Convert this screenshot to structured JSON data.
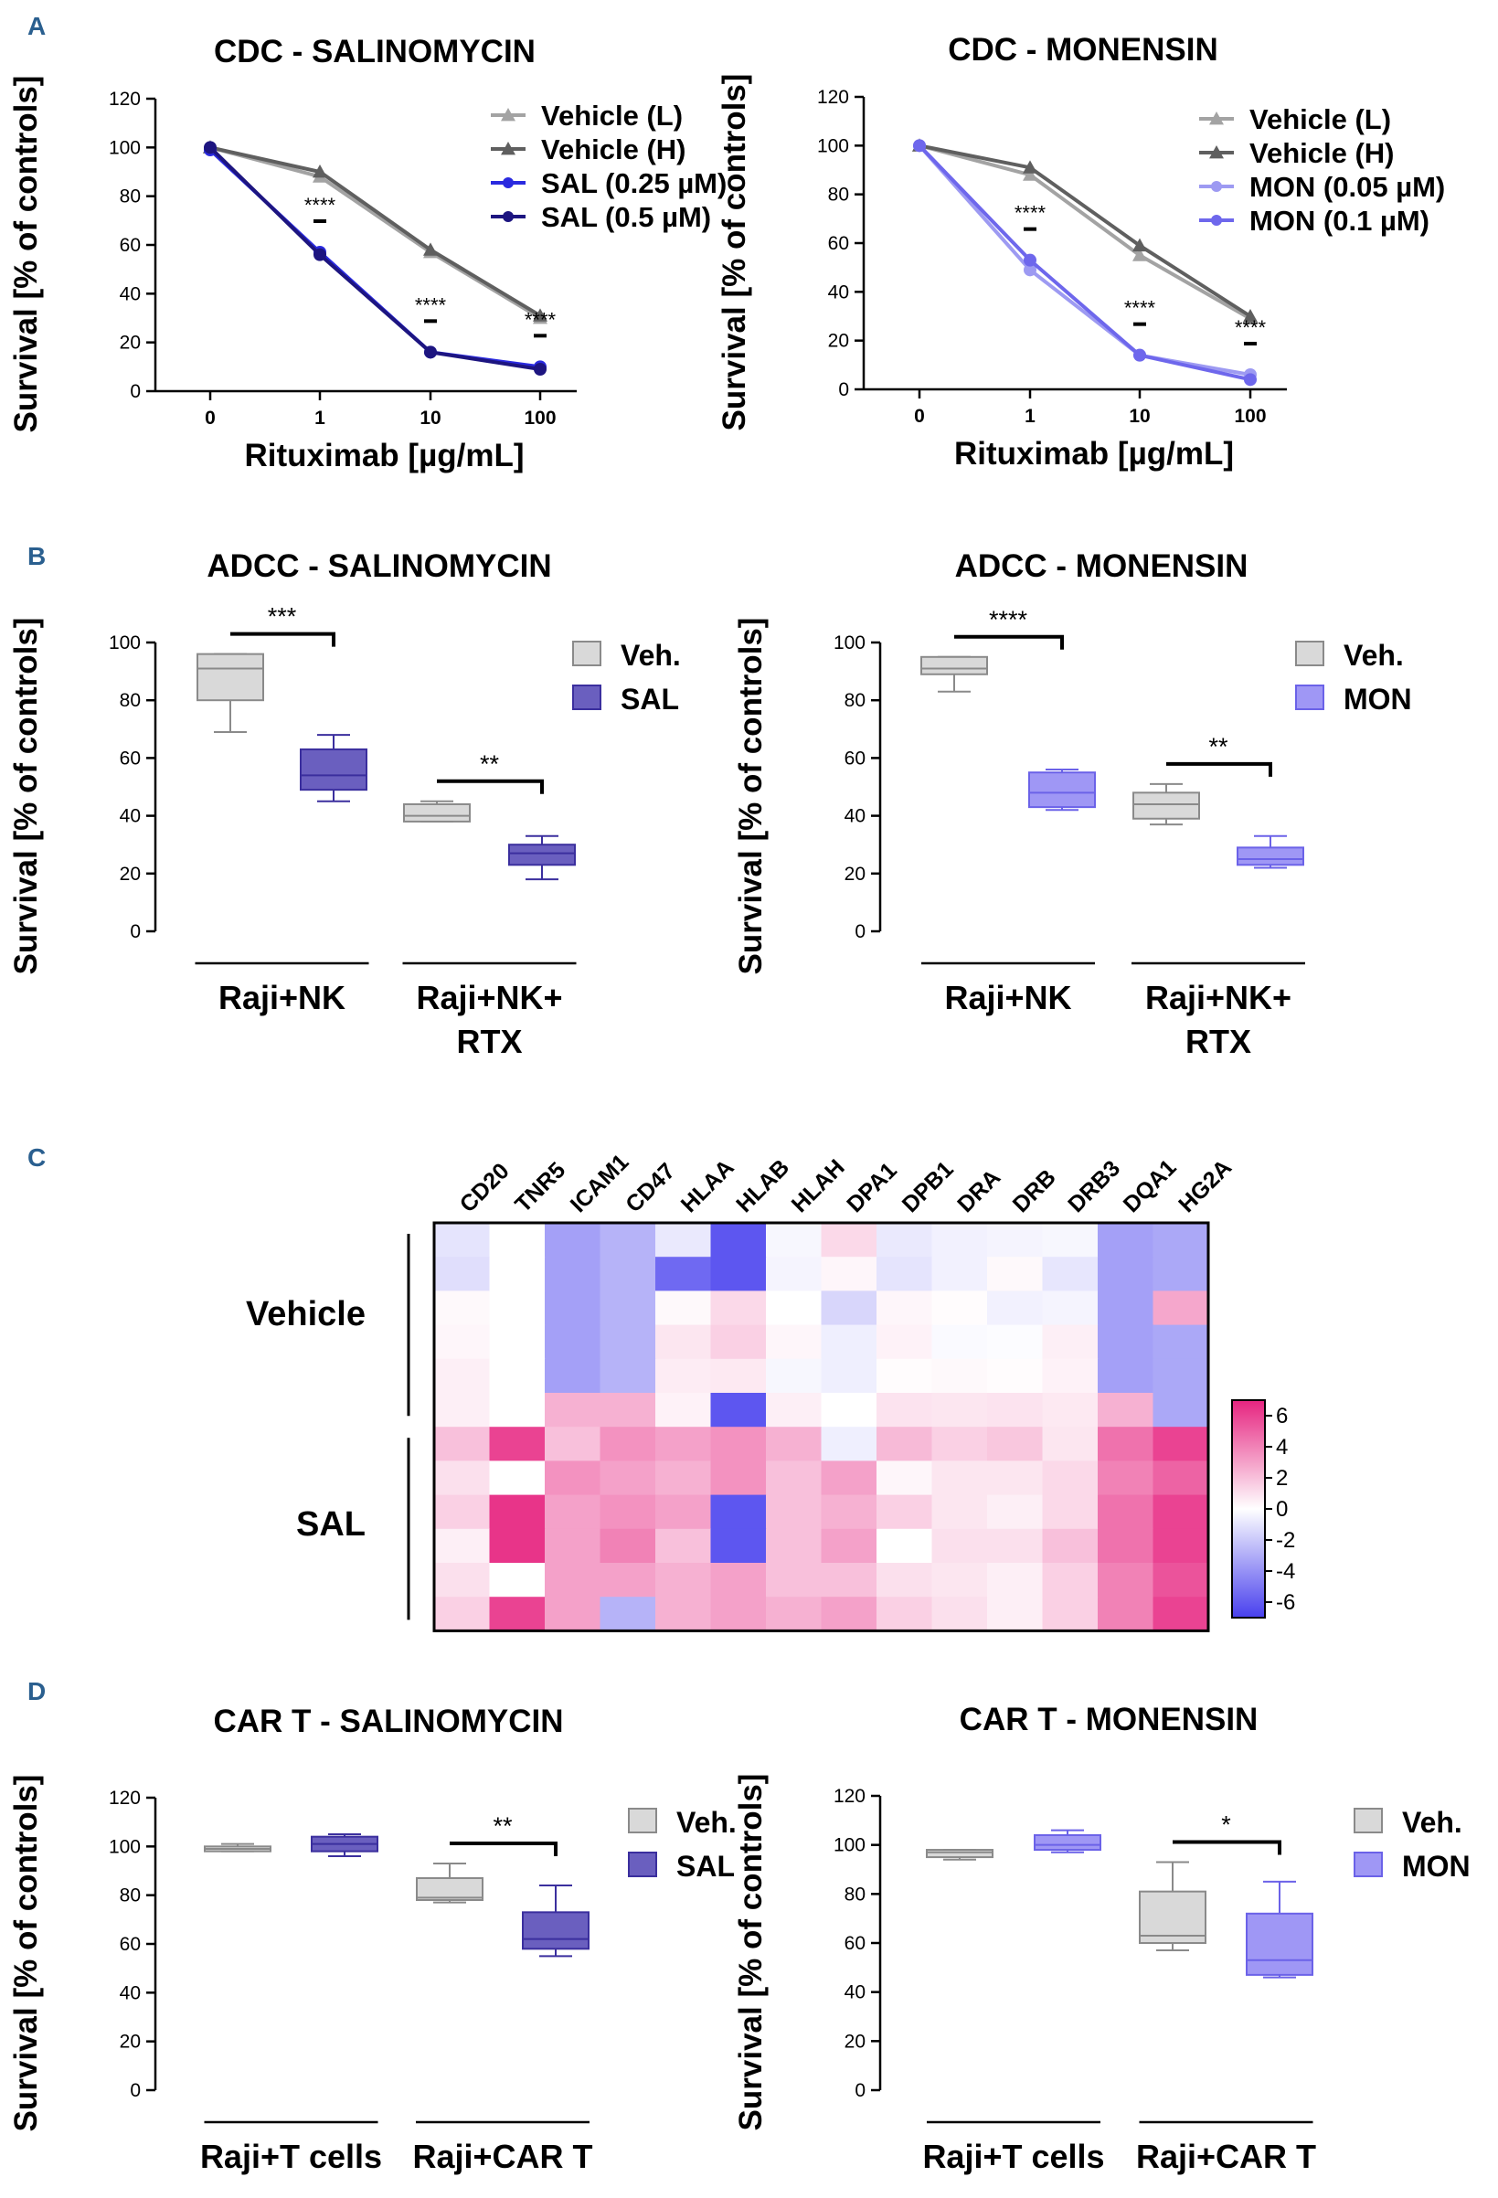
{
  "colors": {
    "veh_light": "#a3a3a3",
    "veh_dark": "#5f5f5f",
    "sal_light": "#2a2adf",
    "sal_dark": "#1d1580",
    "mon_light": "#9d9af2",
    "mon_dark": "#6e67ec",
    "box_veh": "#d9d9d9",
    "box_sal": "#6a5fbf",
    "box_mon": "#9f97f5"
  },
  "panel_labels": [
    "A",
    "B",
    "C",
    "D"
  ],
  "chart_data": [
    {
      "type": "line",
      "panel": "A",
      "title": "CDC - SALINOMYCIN",
      "xlabel": "Rituximab [µg/mL]",
      "ylabel": "Survival [% of controls]",
      "categories": [
        "0",
        "1",
        "10",
        "100"
      ],
      "ylim": [
        0,
        120
      ],
      "yticks": [
        "0",
        "20",
        "40",
        "60",
        "80",
        "100",
        "120"
      ],
      "series": [
        {
          "name": "Vehicle (L)",
          "values": [
            100,
            88,
            57,
            30
          ],
          "marker": "triangle",
          "color_key": "veh_light"
        },
        {
          "name": "Vehicle (H)",
          "values": [
            100,
            90,
            58,
            31
          ],
          "marker": "triangle",
          "color_key": "veh_dark"
        },
        {
          "name": "SAL (0.25 µM)",
          "values": [
            99,
            57,
            16,
            10
          ],
          "marker": "circle",
          "color_key": "sal_light"
        },
        {
          "name": "SAL (0.5 µM)",
          "values": [
            100,
            56,
            16,
            9
          ],
          "marker": "circle",
          "color_key": "sal_dark"
        }
      ],
      "annotations": [
        "****",
        "****",
        "****"
      ]
    },
    {
      "type": "line",
      "panel": "A",
      "title": "CDC - MONENSIN",
      "xlabel": "Rituximab [µg/mL]",
      "ylabel": "Survival [% of controls]",
      "categories": [
        "0",
        "1",
        "10",
        "100"
      ],
      "ylim": [
        0,
        120
      ],
      "yticks": [
        "0",
        "20",
        "40",
        "60",
        "80",
        "100",
        "120"
      ],
      "series": [
        {
          "name": "Vehicle (L)",
          "values": [
            100,
            88,
            55,
            29
          ],
          "marker": "triangle",
          "color_key": "veh_light"
        },
        {
          "name": "Vehicle (H)",
          "values": [
            100,
            91,
            59,
            30
          ],
          "marker": "triangle",
          "color_key": "veh_dark"
        },
        {
          "name": "MON (0.05 µM)",
          "values": [
            100,
            49,
            14,
            6
          ],
          "marker": "circle",
          "color_key": "mon_light"
        },
        {
          "name": "MON (0.1 µM)",
          "values": [
            100,
            53,
            14,
            4
          ],
          "marker": "circle",
          "color_key": "mon_dark"
        }
      ],
      "annotations": [
        "****",
        "****",
        "****"
      ]
    },
    {
      "type": "box",
      "panel": "B",
      "title": "ADCC - SALINOMYCIN",
      "ylabel": "Survival [% of controls]",
      "ylim": [
        0,
        100
      ],
      "yticks": [
        "0",
        "20",
        "40",
        "60",
        "80",
        "100"
      ],
      "groups": [
        "Raji+NK",
        "Raji+NK+ RTX"
      ],
      "legend": [
        "Veh.",
        "SAL"
      ],
      "boxes": [
        {
          "group": 0,
          "name": "Veh.",
          "min": 69,
          "q1": 80,
          "median": 91,
          "q3": 96,
          "max": 96
        },
        {
          "group": 0,
          "name": "SAL",
          "min": 45,
          "q1": 49,
          "median": 54,
          "q3": 63,
          "max": 68
        },
        {
          "group": 1,
          "name": "Veh.",
          "min": 38,
          "q1": 38,
          "median": 40,
          "q3": 44,
          "max": 45
        },
        {
          "group": 1,
          "name": "SAL",
          "min": 18,
          "q1": 23,
          "median": 27,
          "q3": 30,
          "max": 33
        }
      ],
      "significance": [
        {
          "group": 0,
          "label": "***"
        },
        {
          "group": 1,
          "label": "**"
        }
      ]
    },
    {
      "type": "box",
      "panel": "B",
      "title": "ADCC - MONENSIN",
      "ylabel": "Survival [% of controls]",
      "ylim": [
        0,
        100
      ],
      "yticks": [
        "0",
        "20",
        "40",
        "60",
        "80",
        "100"
      ],
      "groups": [
        "Raji+NK",
        "Raji+NK+ RTX"
      ],
      "legend": [
        "Veh.",
        "MON"
      ],
      "boxes": [
        {
          "group": 0,
          "name": "Veh.",
          "min": 83,
          "q1": 89,
          "median": 91,
          "q3": 95,
          "max": 95
        },
        {
          "group": 0,
          "name": "MON",
          "min": 42,
          "q1": 43,
          "median": 48,
          "q3": 55,
          "max": 56
        },
        {
          "group": 1,
          "name": "Veh.",
          "min": 37,
          "q1": 39,
          "median": 44,
          "q3": 48,
          "max": 51
        },
        {
          "group": 1,
          "name": "MON",
          "min": 22,
          "q1": 23,
          "median": 25,
          "q3": 29,
          "max": 33
        }
      ],
      "significance": [
        {
          "group": 0,
          "label": "****"
        },
        {
          "group": 1,
          "label": "**"
        }
      ]
    },
    {
      "type": "heatmap",
      "panel": "C",
      "columns": [
        "CD20",
        "TNR5",
        "ICAM1",
        "CD47",
        "HLAA",
        "HLAB",
        "HLAH",
        "DPA1",
        "DPB1",
        "DRA",
        "DRB",
        "DRB3",
        "DQA1",
        "HG2A"
      ],
      "row_groups": [
        {
          "label": "Vehicle",
          "rows": 6
        },
        {
          "label": "SAL",
          "rows": 6
        }
      ],
      "colorbar": {
        "min": -7,
        "max": 7,
        "ticks": [
          "6",
          "4",
          "2",
          "0",
          "-2",
          "-4",
          "-6"
        ]
      },
      "values": [
        [
          -1,
          0,
          -3.5,
          -2.8,
          -0.8,
          -6.2,
          -0.3,
          1.2,
          -0.8,
          -0.5,
          -0.4,
          -0.3,
          -3.5,
          -3.2
        ],
        [
          -1.2,
          0,
          -3.5,
          -2.8,
          -5.5,
          -6.2,
          -0.4,
          0.3,
          -1.0,
          -0.5,
          0.2,
          -0.9,
          -3.5,
          -3.2
        ],
        [
          0.2,
          0,
          -3.5,
          -2.8,
          0.2,
          1.2,
          0,
          -1.5,
          0.3,
          0.1,
          -0.5,
          -0.4,
          -3.5,
          2.8
        ],
        [
          0.3,
          0,
          -3.5,
          -2.8,
          0.8,
          1.5,
          0.3,
          -0.6,
          0.4,
          -0.2,
          -0.1,
          0.5,
          -3.5,
          -3.2
        ],
        [
          0.5,
          0,
          -3.5,
          -2.8,
          0.6,
          0.7,
          -0.3,
          -0.6,
          0.1,
          0.2,
          0.1,
          0.4,
          -3.5,
          -3.2
        ],
        [
          0.5,
          0,
          2.5,
          2.5,
          0.4,
          -6.2,
          0.5,
          0,
          0.9,
          0.8,
          0.9,
          0.7,
          2.5,
          -3.2
        ],
        [
          2,
          6,
          2,
          3.5,
          3,
          3.5,
          2.5,
          -0.6,
          2.2,
          1.5,
          1.8,
          0.8,
          4.5,
          6
        ],
        [
          1,
          0,
          3.5,
          3,
          2.5,
          3.5,
          2,
          3,
          0.3,
          0.8,
          0.8,
          1.2,
          4,
          5
        ],
        [
          1.5,
          6.5,
          3,
          3.5,
          3,
          -6.2,
          2,
          2.5,
          1.5,
          0.8,
          0.5,
          1.2,
          4.5,
          6
        ],
        [
          0.5,
          6.5,
          3,
          4,
          2,
          -6.2,
          2,
          3,
          0,
          1,
          1,
          2,
          4.5,
          6
        ],
        [
          1,
          0,
          3,
          3,
          2.5,
          3,
          2,
          2,
          1,
          0.8,
          0.5,
          1.5,
          4,
          5.5
        ],
        [
          1.5,
          6,
          3,
          -2.8,
          2.5,
          3,
          2.5,
          3,
          1.5,
          1,
          0.5,
          1.5,
          4,
          6
        ]
      ]
    },
    {
      "type": "box",
      "panel": "D",
      "title": "CAR T - SALINOMYCIN",
      "ylabel": "Survival [% of controls]",
      "ylim": [
        0,
        120
      ],
      "yticks": [
        "0",
        "20",
        "40",
        "60",
        "80",
        "100",
        "120"
      ],
      "groups": [
        "Raji+T cells",
        "Raji+CAR T"
      ],
      "legend": [
        "Veh.",
        "SAL"
      ],
      "boxes": [
        {
          "group": 0,
          "name": "Veh.",
          "min": 98,
          "q1": 98,
          "median": 99,
          "q3": 100,
          "max": 101
        },
        {
          "group": 0,
          "name": "SAL",
          "min": 96,
          "q1": 98,
          "median": 101,
          "q3": 104,
          "max": 105
        },
        {
          "group": 1,
          "name": "Veh.",
          "min": 77,
          "q1": 78,
          "median": 79,
          "q3": 87,
          "max": 93
        },
        {
          "group": 1,
          "name": "SAL",
          "min": 55,
          "q1": 58,
          "median": 62,
          "q3": 73,
          "max": 84
        }
      ],
      "significance": [
        {
          "group": 1,
          "label": "**"
        }
      ]
    },
    {
      "type": "box",
      "panel": "D",
      "title": "CAR T - MONENSIN",
      "ylabel": "Survival [% of controls]",
      "ylim": [
        0,
        120
      ],
      "yticks": [
        "0",
        "20",
        "40",
        "60",
        "80",
        "100",
        "120"
      ],
      "groups": [
        "Raji+T cells",
        "Raji+CAR T"
      ],
      "legend": [
        "Veh.",
        "MON"
      ],
      "boxes": [
        {
          "group": 0,
          "name": "Veh.",
          "min": 94,
          "q1": 95,
          "median": 97,
          "q3": 98,
          "max": 98
        },
        {
          "group": 0,
          "name": "MON",
          "min": 97,
          "q1": 98,
          "median": 100,
          "q3": 104,
          "max": 106
        },
        {
          "group": 1,
          "name": "Veh.",
          "min": 57,
          "q1": 60,
          "median": 63,
          "q3": 81,
          "max": 93
        },
        {
          "group": 1,
          "name": "MON",
          "min": 46,
          "q1": 47,
          "median": 53,
          "q3": 72,
          "max": 85
        }
      ],
      "significance": [
        {
          "group": 1,
          "label": "*"
        }
      ]
    }
  ]
}
